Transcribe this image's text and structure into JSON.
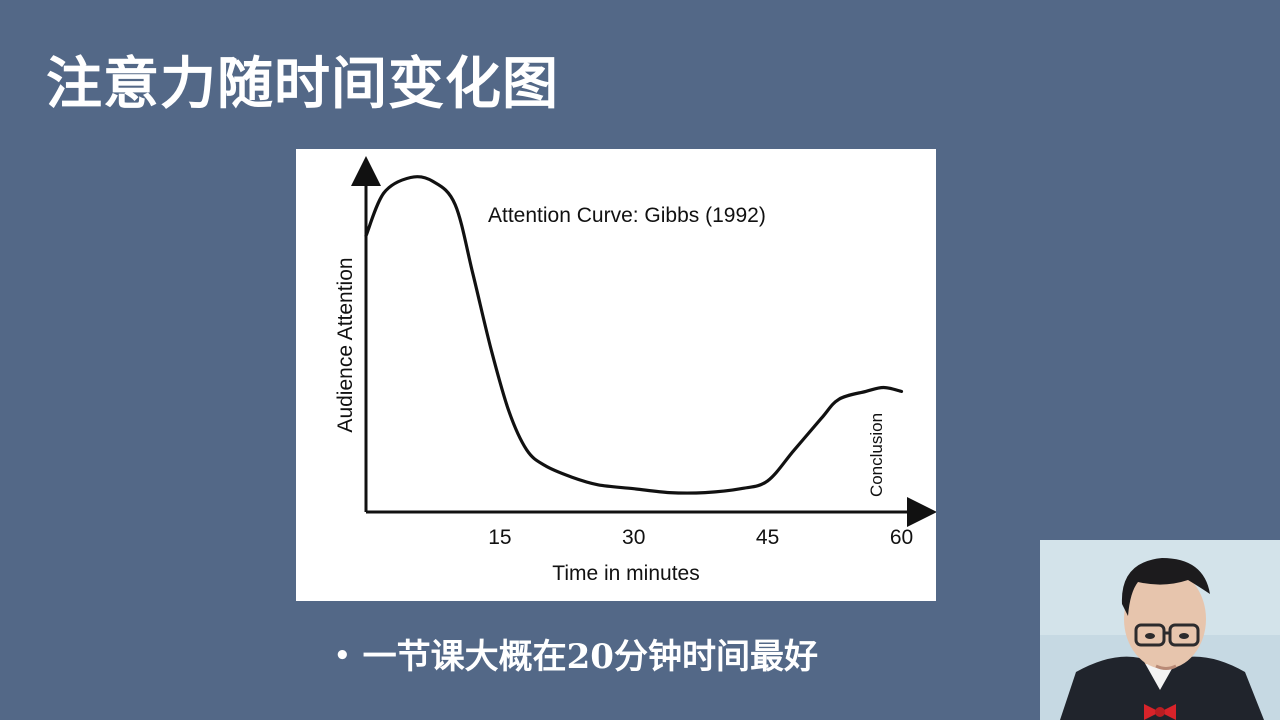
{
  "slide": {
    "title": "注意力随时间变化图",
    "bullet": "一节课大概在20分钟时间最好"
  },
  "chart_data": {
    "type": "line",
    "title": "Attention Curve: Gibbs (1992)",
    "xlabel": "Time in minutes",
    "ylabel": "Audience Attention",
    "xlim": [
      0,
      66
    ],
    "ylim": [
      0,
      100
    ],
    "x_ticks": [
      15,
      30,
      45,
      60
    ],
    "y_ticks": [],
    "grid": false,
    "annotations": [
      {
        "text": "Conclusion",
        "x": 58,
        "orientation": "vertical"
      }
    ],
    "series": [
      {
        "x": [
          0,
          2,
          5,
          7.5,
          10,
          12,
          14,
          16,
          18,
          20,
          23,
          26,
          30,
          34,
          38,
          42,
          45,
          48,
          51,
          53,
          56,
          58,
          60
        ],
        "y": [
          71,
          82,
          86,
          85,
          79,
          61,
          42,
          26,
          16,
          12,
          9,
          7,
          6,
          5,
          5,
          6,
          8,
          16,
          24,
          29,
          31,
          32,
          31
        ]
      }
    ]
  },
  "colors": {
    "slide_background": "#536887",
    "chart_background": "#ffffff",
    "ink": "#111111",
    "text": "#ffffff"
  },
  "webcam": {
    "description_icon": "presenter-video-icon"
  }
}
